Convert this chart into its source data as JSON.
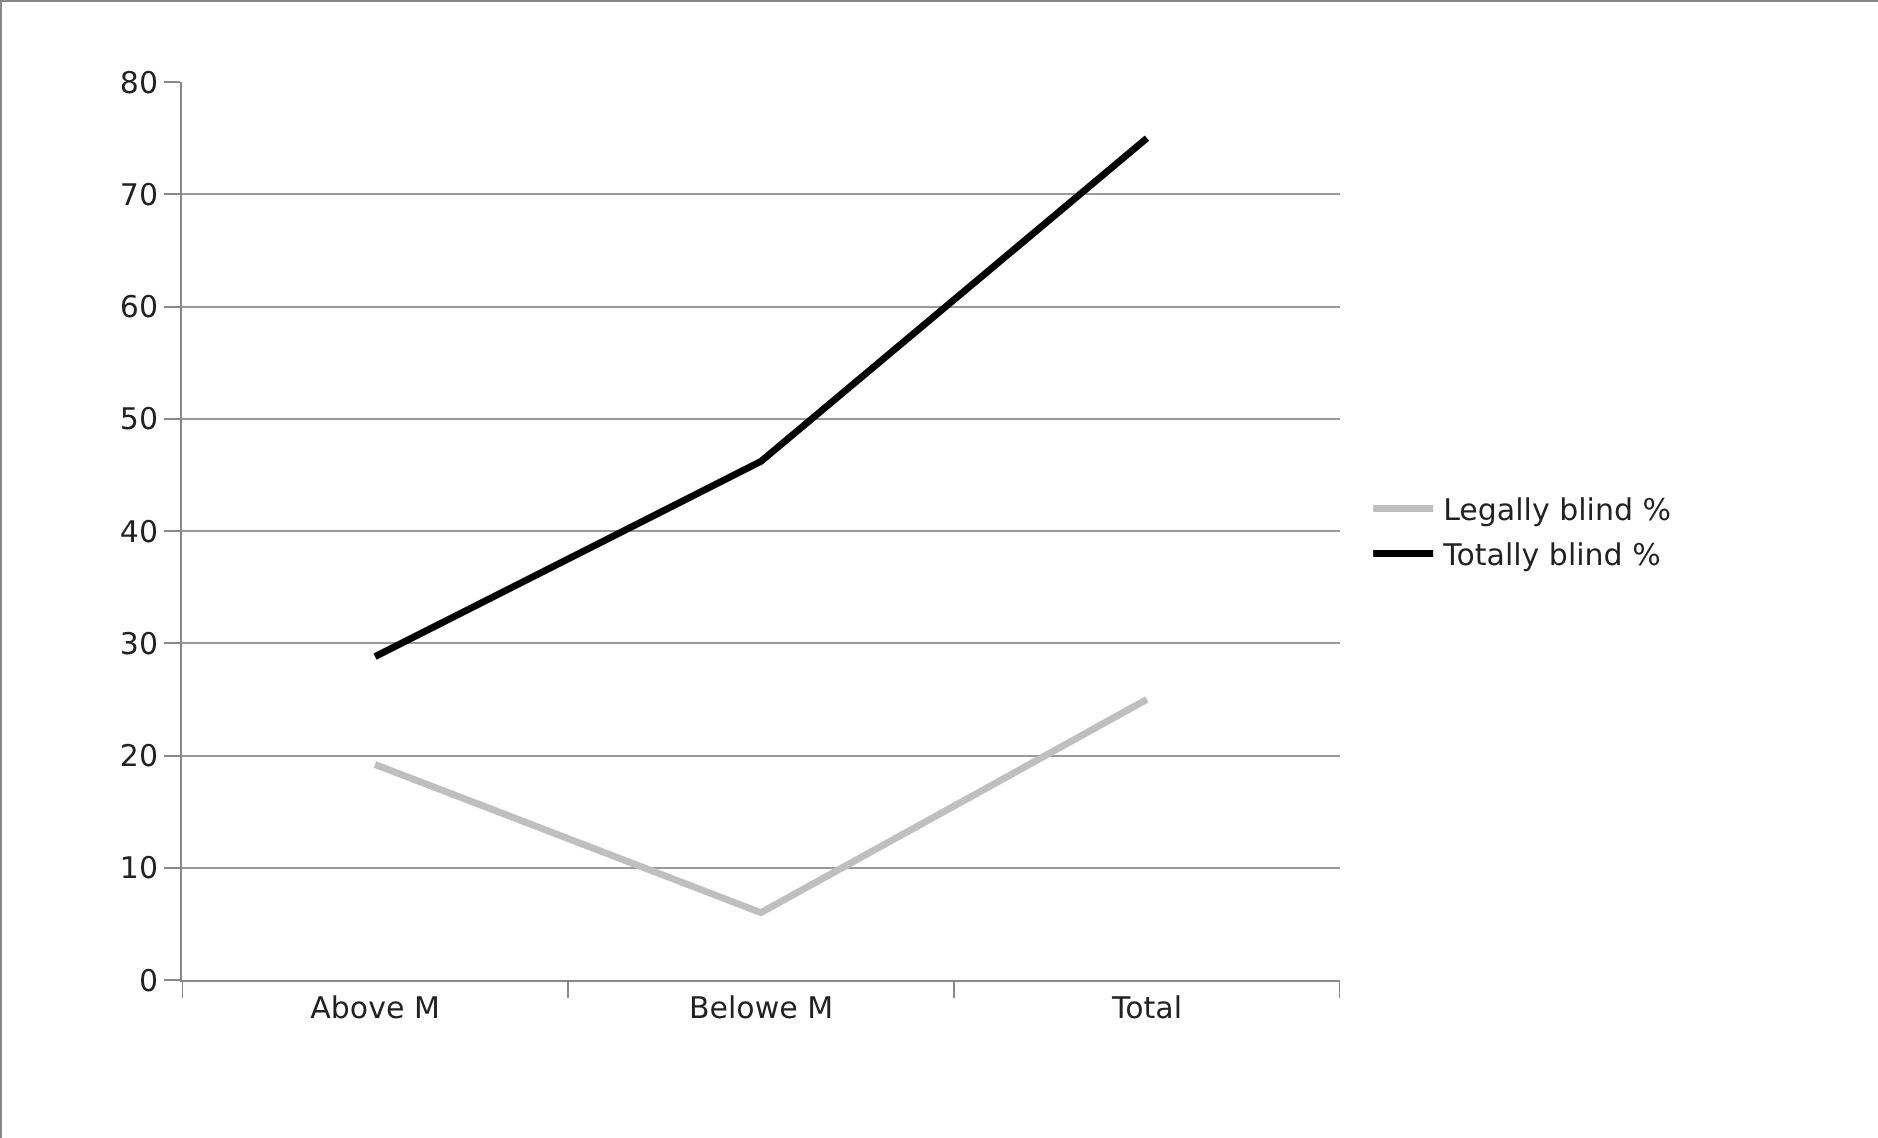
{
  "chart_data": {
    "type": "line",
    "categories": [
      "Above M",
      "Belowe M",
      "Total"
    ],
    "series": [
      {
        "name": "Legally blind %",
        "color": "#bfbfbf",
        "values": [
          19.2,
          6,
          25
        ]
      },
      {
        "name": "Totally blind %",
        "color": "#000000",
        "values": [
          28.8,
          46.2,
          75
        ]
      }
    ],
    "ylim": [
      0,
      80
    ],
    "yticks": [
      0,
      10,
      20,
      30,
      40,
      50,
      60,
      70,
      80
    ],
    "grid": "y",
    "legend": "right",
    "marker": "none",
    "line_style": "solid"
  }
}
